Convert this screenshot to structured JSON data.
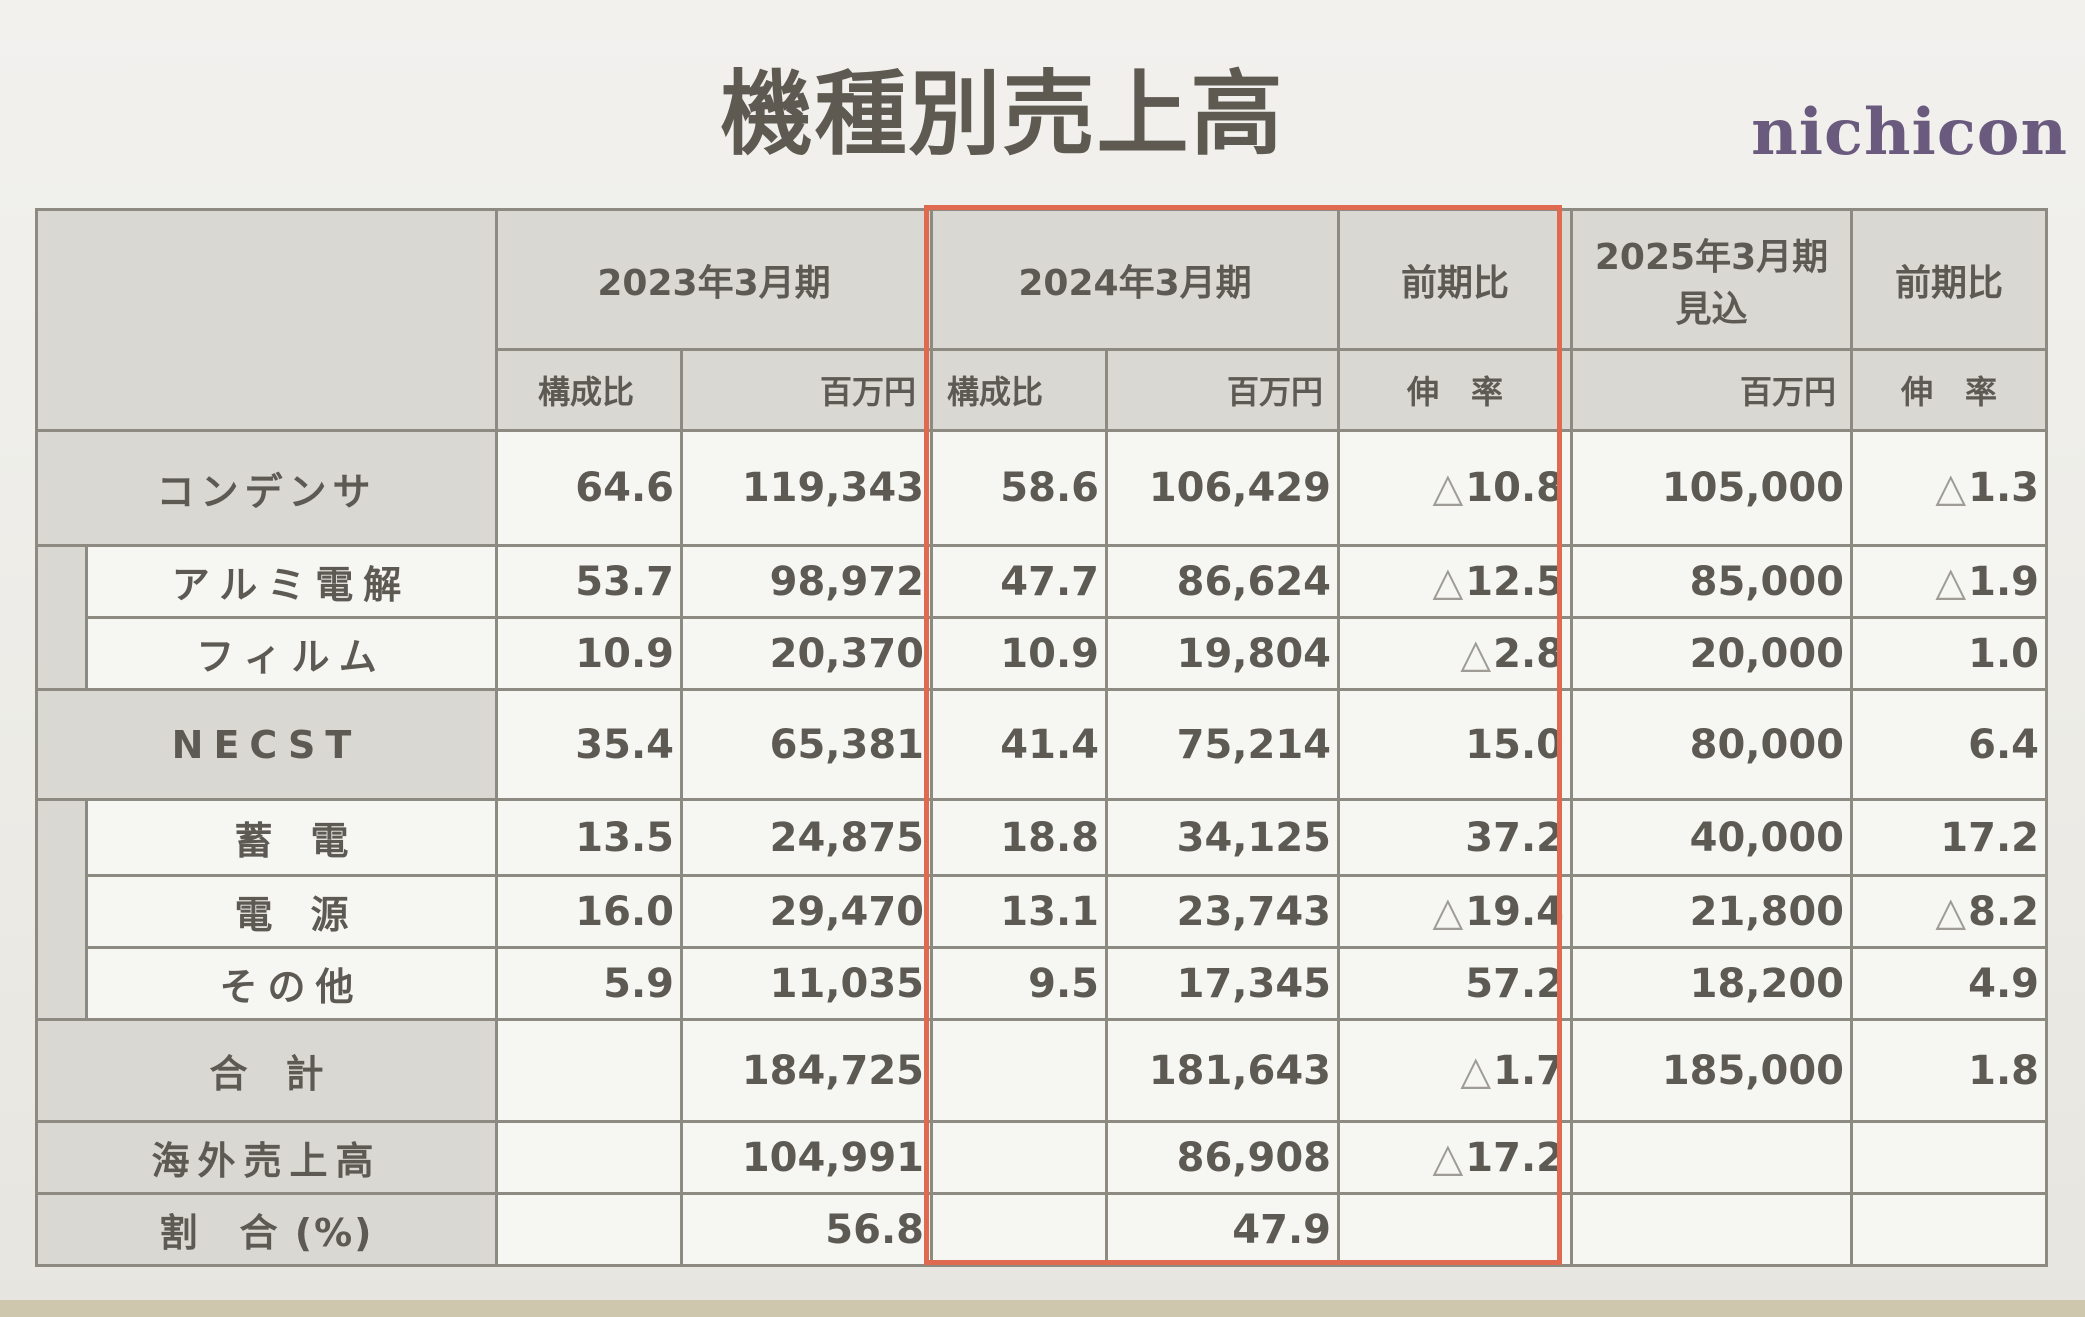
{
  "title": "機種別売上高",
  "logo": "nichicon",
  "header": {
    "fy2023": "2023年3月期",
    "fy2024": "2024年3月期",
    "yoy": "前期比",
    "fy2025_line1": "2025年3月期",
    "fy2025_line2": "見込",
    "yoy2": "前期比",
    "ratio": "構成比",
    "million_yen": "百万円",
    "growth": "伸　率"
  },
  "rows": [
    {
      "label": "コンデンサ",
      "c23": "64.6",
      "v23": "119,343",
      "c24": "58.6",
      "v24": "106,429",
      "g24": "10.8",
      "g24_neg": "△",
      "v25": "105,000",
      "g25": "1.3",
      "g25_neg": "△"
    },
    {
      "label": "アルミ電解",
      "c23": "53.7",
      "v23": "98,972",
      "c24": "47.7",
      "v24": "86,624",
      "g24": "12.5",
      "g24_neg": "△",
      "v25": "85,000",
      "g25": "1.9",
      "g25_neg": "△"
    },
    {
      "label": "フィルム",
      "c23": "10.9",
      "v23": "20,370",
      "c24": "10.9",
      "v24": "19,804",
      "g24": "2.8",
      "g24_neg": "△",
      "v25": "20,000",
      "g25": "1.0",
      "g25_neg": ""
    },
    {
      "label": "NECST",
      "c23": "35.4",
      "v23": "65,381",
      "c24": "41.4",
      "v24": "75,214",
      "g24": "15.0",
      "g24_neg": "",
      "v25": "80,000",
      "g25": "6.4",
      "g25_neg": ""
    },
    {
      "label": "蓄　電",
      "c23": "13.5",
      "v23": "24,875",
      "c24": "18.8",
      "v24": "34,125",
      "g24": "37.2",
      "g24_neg": "",
      "v25": "40,000",
      "g25": "17.2",
      "g25_neg": ""
    },
    {
      "label": "電　源",
      "c23": "16.0",
      "v23": "29,470",
      "c24": "13.1",
      "v24": "23,743",
      "g24": "19.4",
      "g24_neg": "△",
      "v25": "21,800",
      "g25": "8.2",
      "g25_neg": "△"
    },
    {
      "label": "その他",
      "c23": "5.9",
      "v23": "11,035",
      "c24": "9.5",
      "v24": "17,345",
      "g24": "57.2",
      "g24_neg": "",
      "v25": "18,200",
      "g25": "4.9",
      "g25_neg": ""
    },
    {
      "label": "合　計",
      "c23": "",
      "v23": "184,725",
      "c24": "",
      "v24": "181,643",
      "g24": "1.7",
      "g24_neg": "△",
      "v25": "185,000",
      "g25": "1.8",
      "g25_neg": ""
    },
    {
      "label": "海外売上高",
      "c23": "",
      "v23": "104,991",
      "c24": "",
      "v24": "86,908",
      "g24": "17.2",
      "g24_neg": "△",
      "v25": "",
      "g25": "",
      "g25_neg": ""
    },
    {
      "label": "割　合 (%)",
      "c23": "",
      "v23": "56.8",
      "c24": "",
      "v24": "47.9",
      "g24": "",
      "g24_neg": "",
      "v25": "",
      "g25": "",
      "g25_neg": ""
    }
  ]
}
